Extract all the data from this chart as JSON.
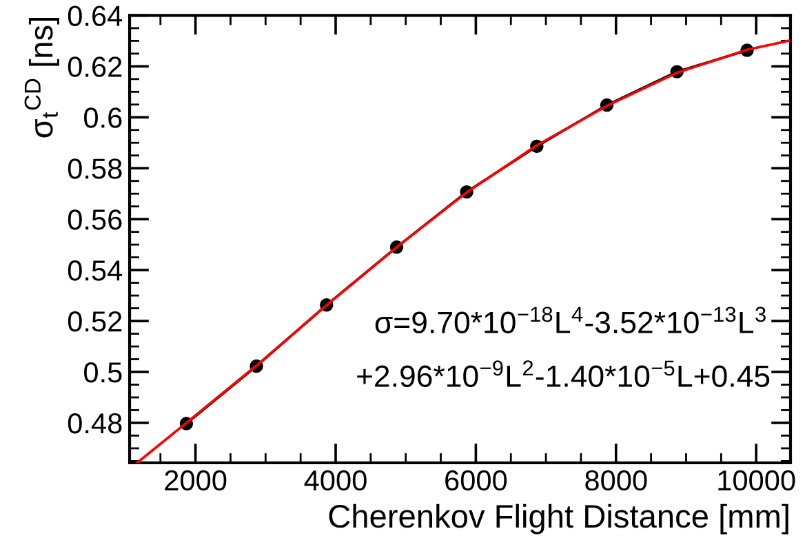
{
  "chart_data": {
    "type": "line",
    "xlabel": "Cherenkov Flight Distance [mm]",
    "ylabel": "σ$_{t}$$^{CD}$ [ns]",
    "xlim": [
      1060,
      10490
    ],
    "ylim": [
      0.4643,
      0.64
    ],
    "xticks": [
      2000,
      4000,
      6000,
      8000,
      10000
    ],
    "yticks": [
      0.48,
      0.5,
      0.52,
      0.54,
      0.56,
      0.58,
      0.6,
      0.62,
      0.64
    ],
    "grid": false,
    "legend": false,
    "series": [
      {
        "marker": "circle",
        "color": "#000000",
        "x": [
          1870,
          2870,
          3870,
          4870,
          5870,
          6870,
          7870,
          8870,
          9870
        ],
        "values": [
          0.4797,
          0.5023,
          0.5263,
          0.549,
          0.5707,
          0.5886,
          0.6048,
          0.6179,
          0.6263
        ]
      },
      {
        "marker": "none",
        "color": "#ff0000",
        "x": [
          1167,
          1870,
          2870,
          3870,
          4870,
          5870,
          6870,
          7870,
          8870,
          9870,
          10490
        ],
        "values": [
          0.4643,
          0.48,
          0.5025,
          0.5262,
          0.549,
          0.5705,
          0.589,
          0.6045,
          0.6175,
          0.6265,
          0.6302
        ]
      }
    ],
    "annotations": [
      "σ=9.70*10$^{−18}$L$^{4}$-3.52*10$^{−13}$L$^{3}$",
      "+2.96*10$^{−9}$L$^{2}$-1.40*10$^{−5}$L+0.45"
    ]
  }
}
